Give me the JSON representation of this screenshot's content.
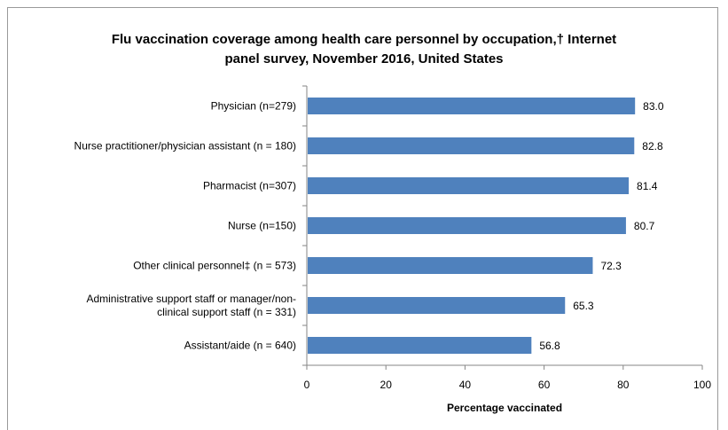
{
  "chart_data": {
    "type": "bar",
    "orientation": "horizontal",
    "title_line1": "Flu vaccination coverage among health care personnel by occupation,† Internet",
    "title_line2": "panel survey, November 2016, United States",
    "xlabel": "Percentage vaccinated",
    "ylabel": "",
    "xlim": [
      0,
      100
    ],
    "xticks": [
      0,
      20,
      40,
      60,
      80,
      100
    ],
    "grid": false,
    "bar_color": "#4f81bd",
    "categories": [
      [
        "Physician (n=279)"
      ],
      [
        "Nurse practitioner/physician assistant (n = 180)"
      ],
      [
        "Pharmacist (n=307)"
      ],
      [
        "Nurse (n=150)"
      ],
      [
        "Other clinical personnel‡ (n = 573)"
      ],
      [
        "Administrative support staff or manager/non-",
        "clinical support staff (n = 331)"
      ],
      [
        "Assistant/aide (n = 640)"
      ]
    ],
    "values": [
      83.0,
      82.8,
      81.4,
      80.7,
      72.3,
      65.3,
      56.8
    ],
    "value_labels": [
      "83.0",
      "82.8",
      "81.4",
      "80.7",
      "72.3",
      "65.3",
      "56.8"
    ]
  }
}
